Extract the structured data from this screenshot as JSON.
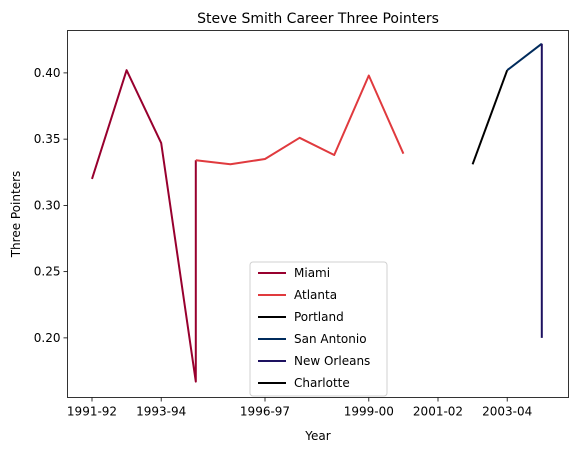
{
  "chart_data": {
    "type": "line",
    "title": "Steve Smith  Career Three Pointers",
    "xlabel": "Year",
    "ylabel": "Three Pointers",
    "categories": [
      "1991-92",
      "1992-93",
      "1993-94",
      "1994-95",
      "1995-96",
      "1996-97",
      "1997-98",
      "1998-99",
      "1999-00",
      "2000-01",
      "2001-02",
      "2002-03",
      "2003-04",
      "2004-05"
    ],
    "x_ticks": [
      "1991-92",
      "1993-94",
      "1996-97",
      "1999-00",
      "2001-02",
      "2003-04"
    ],
    "y_ticks": [
      "0.20",
      "0.25",
      "0.30",
      "0.35",
      "0.40"
    ],
    "ylim": [
      0.155,
      0.432
    ],
    "grid": false,
    "legend_position": "bottom-center",
    "series": [
      {
        "name": "Miami",
        "color": "#98002E",
        "points": [
          {
            "x": "1991-92",
            "y": 0.32
          },
          {
            "x": "1992-93",
            "y": 0.402
          },
          {
            "x": "1993-94",
            "y": 0.347
          },
          {
            "x": "1994-95",
            "y": 0.167
          },
          {
            "x": "1994-95",
            "y": 0.334
          }
        ]
      },
      {
        "name": "Atlanta",
        "color": "#E03A3E",
        "points": [
          {
            "x": "1994-95",
            "y": 0.334
          },
          {
            "x": "1995-96",
            "y": 0.331
          },
          {
            "x": "1996-97",
            "y": 0.335
          },
          {
            "x": "1997-98",
            "y": 0.351
          },
          {
            "x": "1998-99",
            "y": 0.338
          },
          {
            "x": "1999-00",
            "y": 0.398
          },
          {
            "x": "2000-01",
            "y": 0.339
          }
        ]
      },
      {
        "name": "Portland",
        "color": "#000000",
        "points": [
          {
            "x": "2002-03",
            "y": 0.331
          },
          {
            "x": "2003-04",
            "y": 0.402
          }
        ]
      },
      {
        "name": "San Antonio",
        "color": "#002B5C",
        "points": [
          {
            "x": "2003-04",
            "y": 0.402
          },
          {
            "x": "2004-05",
            "y": 0.422
          }
        ]
      },
      {
        "name": "New Orleans",
        "color": "#1D1160",
        "points": [
          {
            "x": "2004-05",
            "y": 0.422
          },
          {
            "x": "2004-05",
            "y": 0.2
          }
        ]
      },
      {
        "name": "Charlotte",
        "color": "#000000",
        "points": []
      }
    ]
  }
}
